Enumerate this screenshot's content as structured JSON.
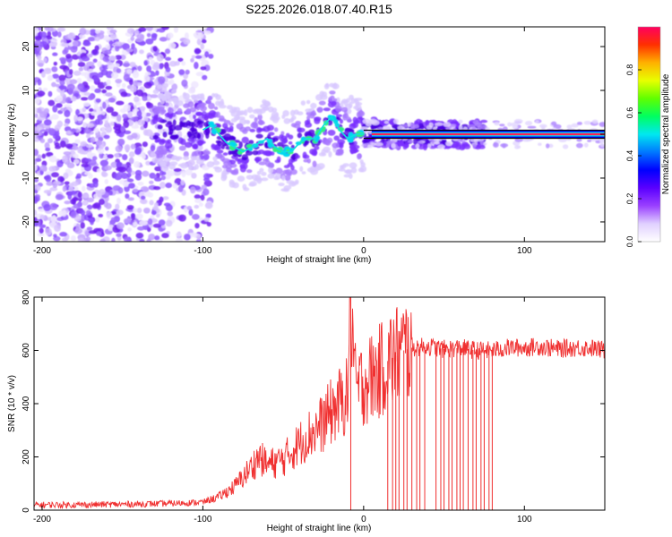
{
  "title": "S225.2026.018.07.40.R15",
  "colors": {
    "snr_line": "#f03030",
    "spectrum_line": "#0a0a0a",
    "colorbar": [
      "#ffffff",
      "#e0d0ff",
      "#9a40ff",
      "#5a00ff",
      "#0000ff",
      "#0078ff",
      "#00e8f0",
      "#00ff60",
      "#60ff00",
      "#e8ff00",
      "#ffb000",
      "#ff3000",
      "#ff0060"
    ]
  },
  "chart_data": [
    {
      "type": "heatmap",
      "xlabel": "Height of straight line (km)",
      "ylabel": "Frequency (Hz)",
      "xlim": [
        -205,
        150
      ],
      "ylim": [
        -24.5,
        24.5
      ],
      "xticks": [
        -200,
        -100,
        0,
        100
      ],
      "yticks": [
        -20,
        -10,
        0,
        10,
        20
      ],
      "grid": false,
      "tone_trace": {
        "x": [
          -100,
          -95,
          -90,
          -85,
          -80,
          -75,
          -70,
          -65,
          -60,
          -55,
          -50,
          -45,
          -40,
          -35,
          -30,
          -25,
          -20,
          -15,
          -10,
          -5,
          0,
          5,
          10,
          20,
          40,
          70,
          110,
          150
        ],
        "y": [
          1,
          2,
          0,
          -2,
          -3,
          -4,
          -3,
          -2,
          -1,
          -3,
          -4,
          -4,
          -2,
          -1,
          -1,
          2,
          4,
          1,
          -1,
          0,
          0,
          1,
          0,
          0,
          0,
          0,
          0,
          0
        ]
      },
      "colorbar": {
        "label": "Normalized spectral amplitude",
        "range": [
          0,
          1
        ],
        "ticks": [
          "0.0",
          "0.2",
          "0.4",
          "0.6",
          "0.8"
        ]
      }
    },
    {
      "type": "line",
      "xlabel": "Height of straight line (km)",
      "ylabel": "SNR (10 * v/v)",
      "xlim": [
        -205,
        150
      ],
      "ylim": [
        0,
        800
      ],
      "xticks": [
        -200,
        -100,
        0,
        100
      ],
      "yticks": [
        0,
        200,
        400,
        600,
        800
      ],
      "grid": false,
      "series": [
        {
          "x": [
            -205,
            -180,
            -150,
            -120,
            -100,
            -90,
            -80,
            -70,
            -65,
            -60,
            -55,
            -50,
            -45,
            -40,
            -35,
            -30,
            -25,
            -20,
            -15,
            -10,
            -8,
            -5,
            0,
            5,
            10,
            15,
            20,
            25,
            30,
            40,
            50,
            60,
            70,
            80,
            90,
            100,
            110,
            120,
            130,
            140,
            150
          ],
          "values": [
            20,
            20,
            22,
            25,
            30,
            50,
            90,
            160,
            200,
            170,
            180,
            190,
            220,
            250,
            280,
            300,
            330,
            370,
            400,
            430,
            800,
            450,
            480,
            500,
            520,
            560,
            580,
            600,
            610,
            615,
            605,
            610,
            600,
            600,
            610,
            610,
            615,
            605,
            610,
            610,
            600
          ]
        }
      ],
      "dropouts_x": [
        -8,
        15,
        18,
        20,
        22,
        25,
        27,
        30,
        33,
        35,
        38,
        45,
        48,
        50,
        53,
        55,
        58,
        60,
        62,
        65,
        68,
        70,
        73,
        75,
        78,
        80
      ]
    }
  ]
}
